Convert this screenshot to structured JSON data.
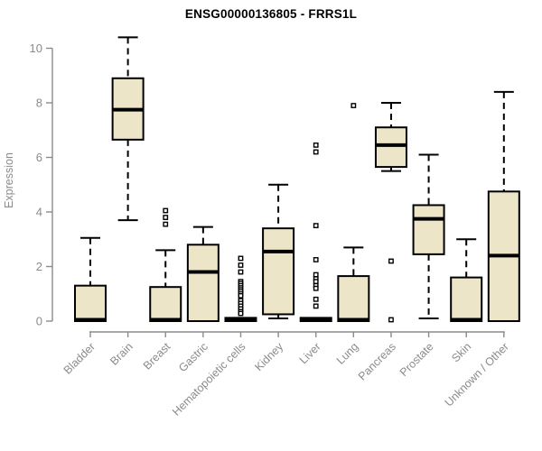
{
  "chart_data": {
    "type": "box",
    "title": "ENSG00000136805 - FRRS1L",
    "ylabel": "Expression",
    "xlabel": "",
    "ylim": [
      0,
      10
    ],
    "yticks": [
      0,
      2,
      4,
      6,
      8,
      10
    ],
    "grid": false,
    "legend": "none",
    "categories": [
      "Bladder",
      "Brain",
      "Breast",
      "Gastric",
      "Hematopoietic cells",
      "Kidney",
      "Liver",
      "Lung",
      "Pancreas",
      "Prostate",
      "Skin",
      "Unknown / Other"
    ],
    "boxes": [
      {
        "category": "Bladder",
        "low": 0,
        "q1": 0,
        "median": 0.05,
        "q3": 1.3,
        "high": 3.05,
        "outliers": []
      },
      {
        "category": "Brain",
        "low": 3.7,
        "q1": 6.65,
        "median": 7.75,
        "q3": 8.9,
        "high": 10.4,
        "outliers": []
      },
      {
        "category": "Breast",
        "low": 0,
        "q1": 0,
        "median": 0.05,
        "q3": 1.25,
        "high": 2.6,
        "outliers": [
          4.05,
          3.8,
          3.55
        ]
      },
      {
        "category": "Gastric",
        "low": 0,
        "q1": 0,
        "median": 1.8,
        "q3": 2.8,
        "high": 3.45,
        "outliers": []
      },
      {
        "category": "Hematopoietic cells",
        "low": 0,
        "q1": 0,
        "median": 0.05,
        "q3": 0.12,
        "high": 0.12,
        "outliers": [
          2.3,
          2.05,
          1.8,
          1.45,
          1.38,
          1.3,
          1.22,
          1.15,
          1.08,
          1.0,
          0.93,
          0.75,
          0.65,
          0.55,
          0.45,
          0.35,
          0.28
        ]
      },
      {
        "category": "Kidney",
        "low": 0.1,
        "q1": 0.25,
        "median": 2.55,
        "q3": 3.4,
        "high": 5.0,
        "outliers": []
      },
      {
        "category": "Liver",
        "low": 0,
        "q1": 0,
        "median": 0.05,
        "q3": 0.12,
        "high": 0.12,
        "outliers": [
          6.45,
          6.2,
          3.5,
          2.25,
          1.7,
          1.55,
          1.45,
          1.3,
          1.2,
          0.8,
          0.55
        ]
      },
      {
        "category": "Lung",
        "low": 0,
        "q1": 0,
        "median": 0.05,
        "q3": 1.65,
        "high": 2.7,
        "outliers": [
          7.9
        ]
      },
      {
        "category": "Pancreas",
        "low": 5.5,
        "q1": 5.65,
        "median": 6.45,
        "q3": 7.1,
        "high": 8.0,
        "outliers": [
          2.2,
          0.05
        ]
      },
      {
        "category": "Prostate",
        "low": 0.1,
        "q1": 2.45,
        "median": 3.75,
        "q3": 4.25,
        "high": 6.1,
        "outliers": []
      },
      {
        "category": "Skin",
        "low": 0,
        "q1": 0,
        "median": 0.05,
        "q3": 1.6,
        "high": 3.0,
        "outliers": []
      },
      {
        "category": "Unknown / Other",
        "low": 0,
        "q1": 0,
        "median": 2.4,
        "q3": 4.75,
        "high": 8.4,
        "outliers": []
      }
    ],
    "style": {
      "box_fill": "#ECE5C8",
      "box_border": "#000000",
      "median_color": "#000000",
      "whisker_color": "#000000",
      "outlier_marker": "open-square",
      "outlier_color": "#000000",
      "axis_color": "#8b8b8b",
      "tick_label_color": "#8b8b8b",
      "title_color": "#000000",
      "background": "#ffffff"
    }
  }
}
